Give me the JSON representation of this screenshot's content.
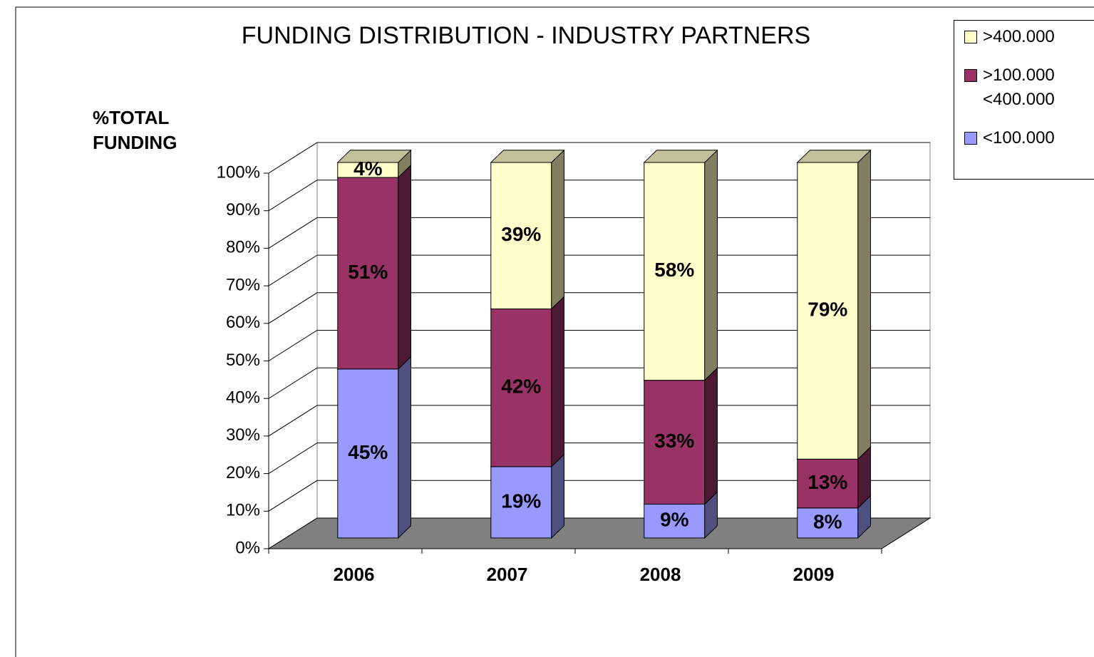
{
  "chart_data": {
    "type": "bar3d_stacked",
    "title": "FUNDING DISTRIBUTION - INDUSTRY PARTNERS",
    "y_label": "%TOTAL FUNDING",
    "categories": [
      "2006",
      "2007",
      "2008",
      "2009"
    ],
    "series": [
      {
        "name": "<100.000",
        "color": "#9999ff",
        "side_color": "#505080",
        "values": [
          45,
          19,
          9,
          8
        ],
        "value_labels": [
          "45%",
          "19%",
          "9%",
          "8%"
        ]
      },
      {
        "name": ">100.000 <400.000",
        "color": "#993366",
        "side_color": "#4d1a33",
        "values": [
          51,
          42,
          33,
          13
        ],
        "value_labels": [
          "51%",
          "42%",
          "33%",
          "13%"
        ]
      },
      {
        "name": ">400.000",
        "color": "#ffffcc",
        "side_color": "#808060",
        "values": [
          4,
          39,
          58,
          79
        ],
        "value_labels": [
          "4%",
          "39%",
          "58%",
          "79%"
        ]
      }
    ],
    "ylim": [
      0,
      100
    ],
    "yticks": [
      {
        "value": 0,
        "label": "0%"
      },
      {
        "value": 10,
        "label": "10%"
      },
      {
        "value": 20,
        "label": "20%"
      },
      {
        "value": 30,
        "label": "30%"
      },
      {
        "value": 40,
        "label": "40%"
      },
      {
        "value": 50,
        "label": "50%"
      },
      {
        "value": 60,
        "label": "60%"
      },
      {
        "value": 70,
        "label": "70%"
      },
      {
        "value": 80,
        "label": "80%"
      },
      {
        "value": 90,
        "label": "90%"
      },
      {
        "value": 100,
        "label": "100%"
      }
    ],
    "grid": true,
    "legend": "top-right"
  }
}
